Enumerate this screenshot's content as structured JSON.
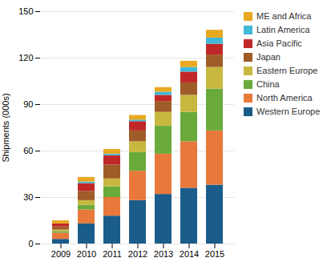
{
  "chart_data": {
    "type": "bar",
    "stacked": true,
    "categories": [
      "2009",
      "2010",
      "2011",
      "2012",
      "2013",
      "2014",
      "2015"
    ],
    "series": [
      {
        "name": "Western Europe",
        "color": "#1a5c8a",
        "values": [
          3,
          13,
          18,
          28,
          32,
          36,
          38
        ]
      },
      {
        "name": "North America",
        "color": "#e8793a",
        "values": [
          4,
          9,
          12,
          19,
          26,
          30,
          35
        ]
      },
      {
        "name": "China",
        "color": "#6aaa3a",
        "values": [
          1,
          3,
          7,
          12,
          18,
          19,
          27
        ]
      },
      {
        "name": "Eastern Europe",
        "color": "#c8b840",
        "values": [
          1,
          3,
          5,
          7,
          9,
          11,
          14
        ]
      },
      {
        "name": "Japan",
        "color": "#a05c28",
        "values": [
          2,
          6,
          9,
          7,
          7,
          8,
          8
        ]
      },
      {
        "name": "Asia Pacific",
        "color": "#c02828",
        "values": [
          2,
          5,
          6,
          6,
          4,
          7,
          7
        ]
      },
      {
        "name": "Latin America",
        "color": "#40b8d8",
        "values": [
          0,
          1,
          1,
          1,
          2,
          3,
          4
        ]
      },
      {
        "name": "ME and Africa",
        "color": "#e8a820",
        "values": [
          2,
          3,
          3,
          3,
          3,
          4,
          5
        ]
      }
    ],
    "ylabel": "Shipments (000s)",
    "ylim": [
      0,
      150
    ],
    "yticks": [
      0,
      30,
      60,
      90,
      120,
      150
    ],
    "grid": true,
    "legend": "right"
  }
}
